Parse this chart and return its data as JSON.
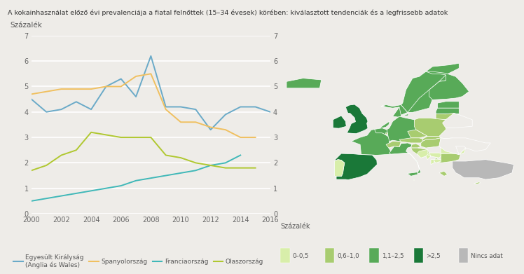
{
  "title": "A kokainhasználat előző évi prevalenciája a fiatal felnőttek (15–34 évesek) körében: kiválasztott tendenciák és a legfrissebb adatok",
  "ylabel": "Százalék",
  "bg_color": "#eeece8",
  "plot_bg_color": "#eeece8",
  "grid_color": "#ffffff",
  "years": [
    2000,
    2001,
    2002,
    2003,
    2004,
    2005,
    2006,
    2007,
    2008,
    2009,
    2010,
    2011,
    2012,
    2013,
    2014,
    2015,
    2016
  ],
  "uk": [
    4.5,
    4.0,
    4.1,
    4.4,
    4.1,
    5.0,
    5.3,
    4.6,
    6.2,
    4.2,
    4.2,
    4.1,
    3.3,
    3.9,
    4.2,
    4.2,
    4.0
  ],
  "spain": [
    4.7,
    4.8,
    4.9,
    4.9,
    4.9,
    5.0,
    5.0,
    5.4,
    5.5,
    4.1,
    3.6,
    3.6,
    3.4,
    3.3,
    3.0,
    3.0,
    null
  ],
  "france": [
    0.5,
    0.6,
    0.7,
    0.8,
    0.9,
    1.0,
    1.1,
    1.3,
    1.4,
    1.5,
    1.6,
    1.7,
    1.9,
    2.0,
    2.3,
    null,
    null
  ],
  "italy": [
    1.7,
    1.9,
    2.3,
    2.5,
    3.2,
    3.1,
    3.0,
    3.0,
    3.0,
    2.3,
    2.2,
    2.0,
    1.9,
    1.8,
    1.8,
    1.8,
    null
  ],
  "uk_color": "#6aaac8",
  "spain_color": "#f0c060",
  "france_color": "#40b8b8",
  "italy_color": "#b0c830",
  "ylim": [
    0,
    7
  ],
  "yticks": [
    0,
    1,
    2,
    3,
    4,
    5,
    6,
    7
  ],
  "legend_labels": [
    "Egyesült Királyság\n(Anglia és Wales)",
    "Spanyolország",
    "Franciaország",
    "Olaszország"
  ],
  "legend_colors": [
    "#6aaac8",
    "#f0c060",
    "#40b8b8",
    "#b0c830"
  ],
  "map_legend_title": "Százalék",
  "map_legend_labels": [
    "0–0,5",
    "0,6–1,0",
    "1,1–2,5",
    ">2,5",
    "Nincs adat"
  ],
  "map_legend_colors": [
    "#d8eeaa",
    "#a8cc70",
    "#58aa58",
    "#1a7838",
    "#b8b8b8"
  ],
  "c0": "#d8eeaa",
  "c1": "#a8cc70",
  "c2": "#58aa58",
  "c3": "#1a7838",
  "c4": "#b8b8b8",
  "cbg": "#eeece8"
}
